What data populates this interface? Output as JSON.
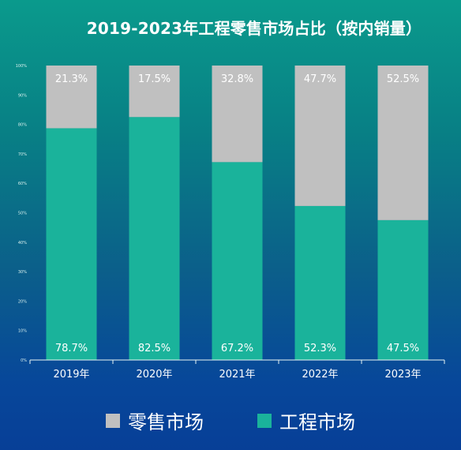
{
  "chart_data": {
    "type": "bar",
    "stacked": true,
    "title": "2019-2023年工程零售市场占比（按内销量）",
    "categories": [
      "2019年",
      "2020年",
      "2021年",
      "2022年",
      "2023年"
    ],
    "series": [
      {
        "name": "工程市场",
        "values": [
          78.7,
          82.5,
          67.2,
          52.3,
          47.5
        ],
        "labels": [
          "78.7%",
          "82.5%",
          "67.2%",
          "52.3%",
          "47.5%"
        ],
        "color": "#1ab39b"
      },
      {
        "name": "零售市场",
        "values": [
          21.3,
          17.5,
          32.8,
          47.7,
          52.5
        ],
        "labels": [
          "21.3%",
          "17.5%",
          "32.8%",
          "47.7%",
          "52.5%"
        ],
        "color": "#c0c0c0"
      }
    ],
    "ylim": [
      0,
      100
    ],
    "yticks": [
      "0%",
      "10%",
      "20%",
      "30%",
      "40%",
      "50%",
      "60%",
      "70%",
      "80%",
      "90%",
      "100%"
    ],
    "grid": false,
    "legend": "bottom"
  },
  "legend": [
    {
      "label": "零售市场",
      "color": "#c0c0c0"
    },
    {
      "label": "工程市场",
      "color": "#1ab39b"
    }
  ]
}
